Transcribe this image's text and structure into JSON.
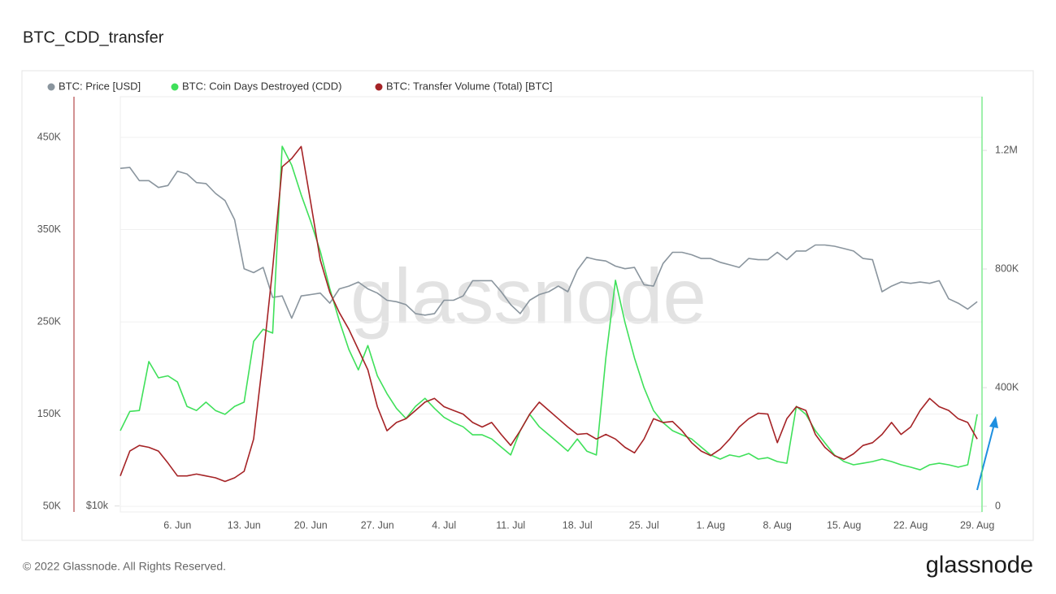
{
  "chart_data": {
    "type": "line",
    "title": "BTC_CDD_transfer",
    "watermark": "glassnode",
    "footer": "© 2022 Glassnode. All Rights Reserved.",
    "logo": "glassnode",
    "categories": [
      null,
      null,
      null,
      null,
      null,
      null,
      "6. Jun",
      null,
      null,
      null,
      null,
      null,
      null,
      "13. Jun",
      null,
      null,
      null,
      null,
      null,
      null,
      "20. Jun",
      null,
      null,
      null,
      null,
      null,
      null,
      "27. Jun",
      null,
      null,
      null,
      null,
      null,
      null,
      "4. Jul",
      null,
      null,
      null,
      null,
      null,
      null,
      "11. Jul",
      null,
      null,
      null,
      null,
      null,
      null,
      "18. Jul",
      null,
      null,
      null,
      null,
      null,
      null,
      "25. Jul",
      null,
      null,
      null,
      null,
      null,
      null,
      "1. Aug",
      null,
      null,
      null,
      null,
      null,
      null,
      "8. Aug",
      null,
      null,
      null,
      null,
      null,
      null,
      "15. Aug",
      null,
      null,
      null,
      null,
      null,
      null,
      "22. Aug",
      null,
      null,
      null,
      null,
      null,
      null,
      "29. Aug"
    ],
    "series": [
      {
        "name": "BTC: Price [USD]",
        "color": "#8a959e",
        "axis": "y3",
        "values": [
          31700,
          31800,
          30400,
          30400,
          29700,
          29900,
          31400,
          31100,
          30200,
          30100,
          29100,
          28400,
          26600,
          22500,
          22200,
          22600,
          20400,
          20500,
          19000,
          20500,
          20600,
          20700,
          20000,
          21000,
          21200,
          21500,
          21000,
          20700,
          20200,
          20100,
          19900,
          19300,
          19200,
          19300,
          20200,
          20200,
          20500,
          21600,
          21600,
          21600,
          20800,
          19900,
          19300,
          20200,
          20600,
          20800,
          21200,
          20800,
          22400,
          23400,
          23200,
          23100,
          22700,
          22500,
          22600,
          21300,
          21200,
          22900,
          23800,
          23800,
          23600,
          23300,
          23300,
          23000,
          22800,
          22600,
          23300,
          23200,
          23200,
          23800,
          23200,
          23900,
          23900,
          24400,
          24400,
          24300,
          24100,
          23900,
          23300,
          23200,
          20800,
          21200,
          21500,
          21400,
          21500,
          21400,
          21600,
          20300,
          20000,
          19600,
          20100
        ]
      },
      {
        "name": "BTC: Coin Days Destroyed (CDD)",
        "color": "#3fe05a",
        "axis": "y2",
        "values": [
          255000,
          320000,
          323000,
          488000,
          433000,
          440000,
          419000,
          337000,
          323000,
          351000,
          323000,
          310000,
          337000,
          351000,
          556000,
          597000,
          584000,
          1214000,
          1150000,
          1050000,
          960000,
          860000,
          734000,
          625000,
          529000,
          460000,
          542000,
          440000,
          380000,
          330000,
          296000,
          337000,
          364000,
          330000,
          300000,
          282000,
          268000,
          241000,
          241000,
          227000,
          200000,
          173000,
          255000,
          310000,
          268000,
          241000,
          214000,
          186000,
          227000,
          186000,
          173000,
          501000,
          762000,
          620000,
          500000,
          400000,
          323000,
          282000,
          255000,
          241000,
          227000,
          200000,
          173000,
          159000,
          173000,
          167000,
          178000,
          159000,
          164000,
          151000,
          145000,
          337000,
          310000,
          255000,
          214000,
          173000,
          151000,
          140000,
          145000,
          151000,
          159000,
          151000,
          140000,
          132000,
          123000,
          140000,
          145000,
          140000,
          132000,
          140000,
          310000
        ]
      },
      {
        "name": "BTC: Transfer Volume (Total) [BTC]",
        "color": "#a52326",
        "axis": "y",
        "values": [
          83000,
          110000,
          116000,
          114000,
          110000,
          97000,
          83000,
          83000,
          85000,
          83000,
          81000,
          77000,
          81000,
          88000,
          123000,
          211000,
          308000,
          418000,
          427000,
          440000,
          379000,
          317000,
          282000,
          260000,
          242000,
          220000,
          198000,
          158000,
          132000,
          141000,
          145000,
          154000,
          163000,
          167000,
          158000,
          154000,
          150000,
          141000,
          136000,
          141000,
          128000,
          116000,
          132000,
          150000,
          163000,
          154000,
          145000,
          136000,
          128000,
          129000,
          123000,
          128000,
          123000,
          114000,
          108000,
          123000,
          145000,
          141000,
          142000,
          132000,
          119000,
          110000,
          105000,
          112000,
          123000,
          136000,
          145000,
          151000,
          150000,
          119000,
          145000,
          158000,
          154000,
          128000,
          114000,
          105000,
          101000,
          107000,
          116000,
          119000,
          128000,
          141000,
          128000,
          136000,
          154000,
          167000,
          158000,
          154000,
          145000,
          141000,
          123000
        ]
      }
    ],
    "ylim": [
      44000,
      494000
    ],
    "yticks": [
      {
        "value": 50000,
        "label": "50K"
      },
      {
        "value": 150000,
        "label": "150K"
      },
      {
        "value": 250000,
        "label": "250K"
      },
      {
        "value": 350000,
        "label": "350K"
      },
      {
        "value": 450000,
        "label": "450K"
      }
    ],
    "y2lim": [
      -19000,
      1381000
    ],
    "y2ticks": [
      0,
      {
        "value": 400000,
        "label": "400K"
      },
      {
        "value": 800000,
        "label": "800K"
      },
      {
        "value": 1200000,
        "label": "1.2M"
      }
    ],
    "y3lim": [
      9800,
      40500
    ],
    "y3scale": "log",
    "y3ticks": [
      {
        "value": 10000,
        "label": "$10k"
      }
    ],
    "grid": true,
    "legend": "top-left"
  }
}
